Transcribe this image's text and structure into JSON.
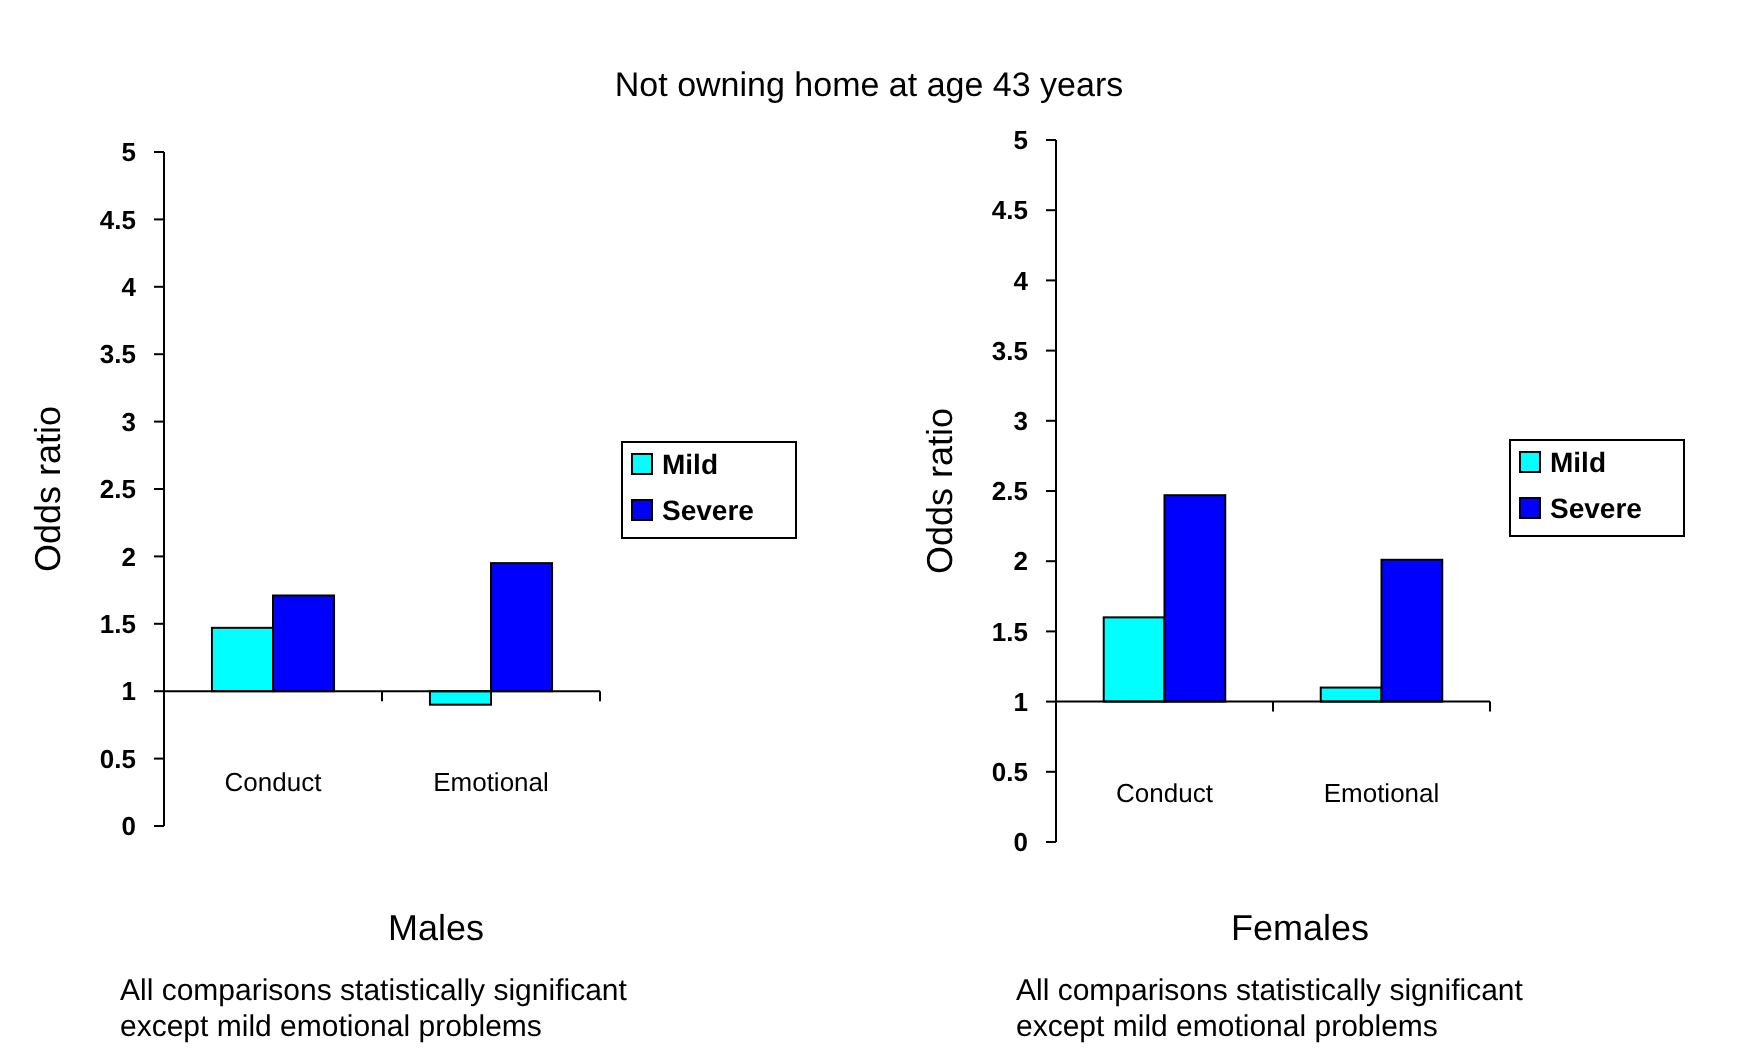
{
  "chart_data": [
    {
      "type": "bar",
      "title": "Not owning home at age 43 years",
      "xlabel": "Males",
      "ylabel": "Odds ratio",
      "categories": [
        "Conduct",
        "Emotional"
      ],
      "series": [
        {
          "name": "Mild",
          "color": "#00ffff",
          "base": [
            1,
            1
          ],
          "values": [
            0.47,
            -0.1
          ]
        },
        {
          "name": "Severe",
          "color": "#0000ff",
          "base": [
            1,
            1
          ],
          "values": [
            0.71,
            0.95
          ]
        }
      ],
      "ylim": [
        0,
        5
      ],
      "yticks": [
        0,
        0.5,
        1,
        1.5,
        2,
        2.5,
        3,
        3.5,
        4,
        4.5,
        5
      ],
      "legend": "right",
      "annotations": [
        "All comparisons statistically significant except mild emotional problems"
      ]
    },
    {
      "type": "bar",
      "xlabel": "Females",
      "ylabel": "Odds ratio",
      "categories": [
        "Conduct",
        "Emotional"
      ],
      "series": [
        {
          "name": "Mild",
          "color": "#00ffff",
          "base": [
            1,
            1
          ],
          "values": [
            0.6,
            0.1
          ]
        },
        {
          "name": "Severe",
          "color": "#0000ff",
          "base": [
            1,
            1
          ],
          "values": [
            1.47,
            1.01
          ]
        }
      ],
      "ylim": [
        0,
        5
      ],
      "yticks": [
        0,
        0.5,
        1,
        1.5,
        2,
        2.5,
        3,
        3.5,
        4,
        4.5,
        5
      ],
      "legend": "right",
      "annotations": [
        "All comparisons statistically significant except mild emotional problems"
      ]
    }
  ]
}
